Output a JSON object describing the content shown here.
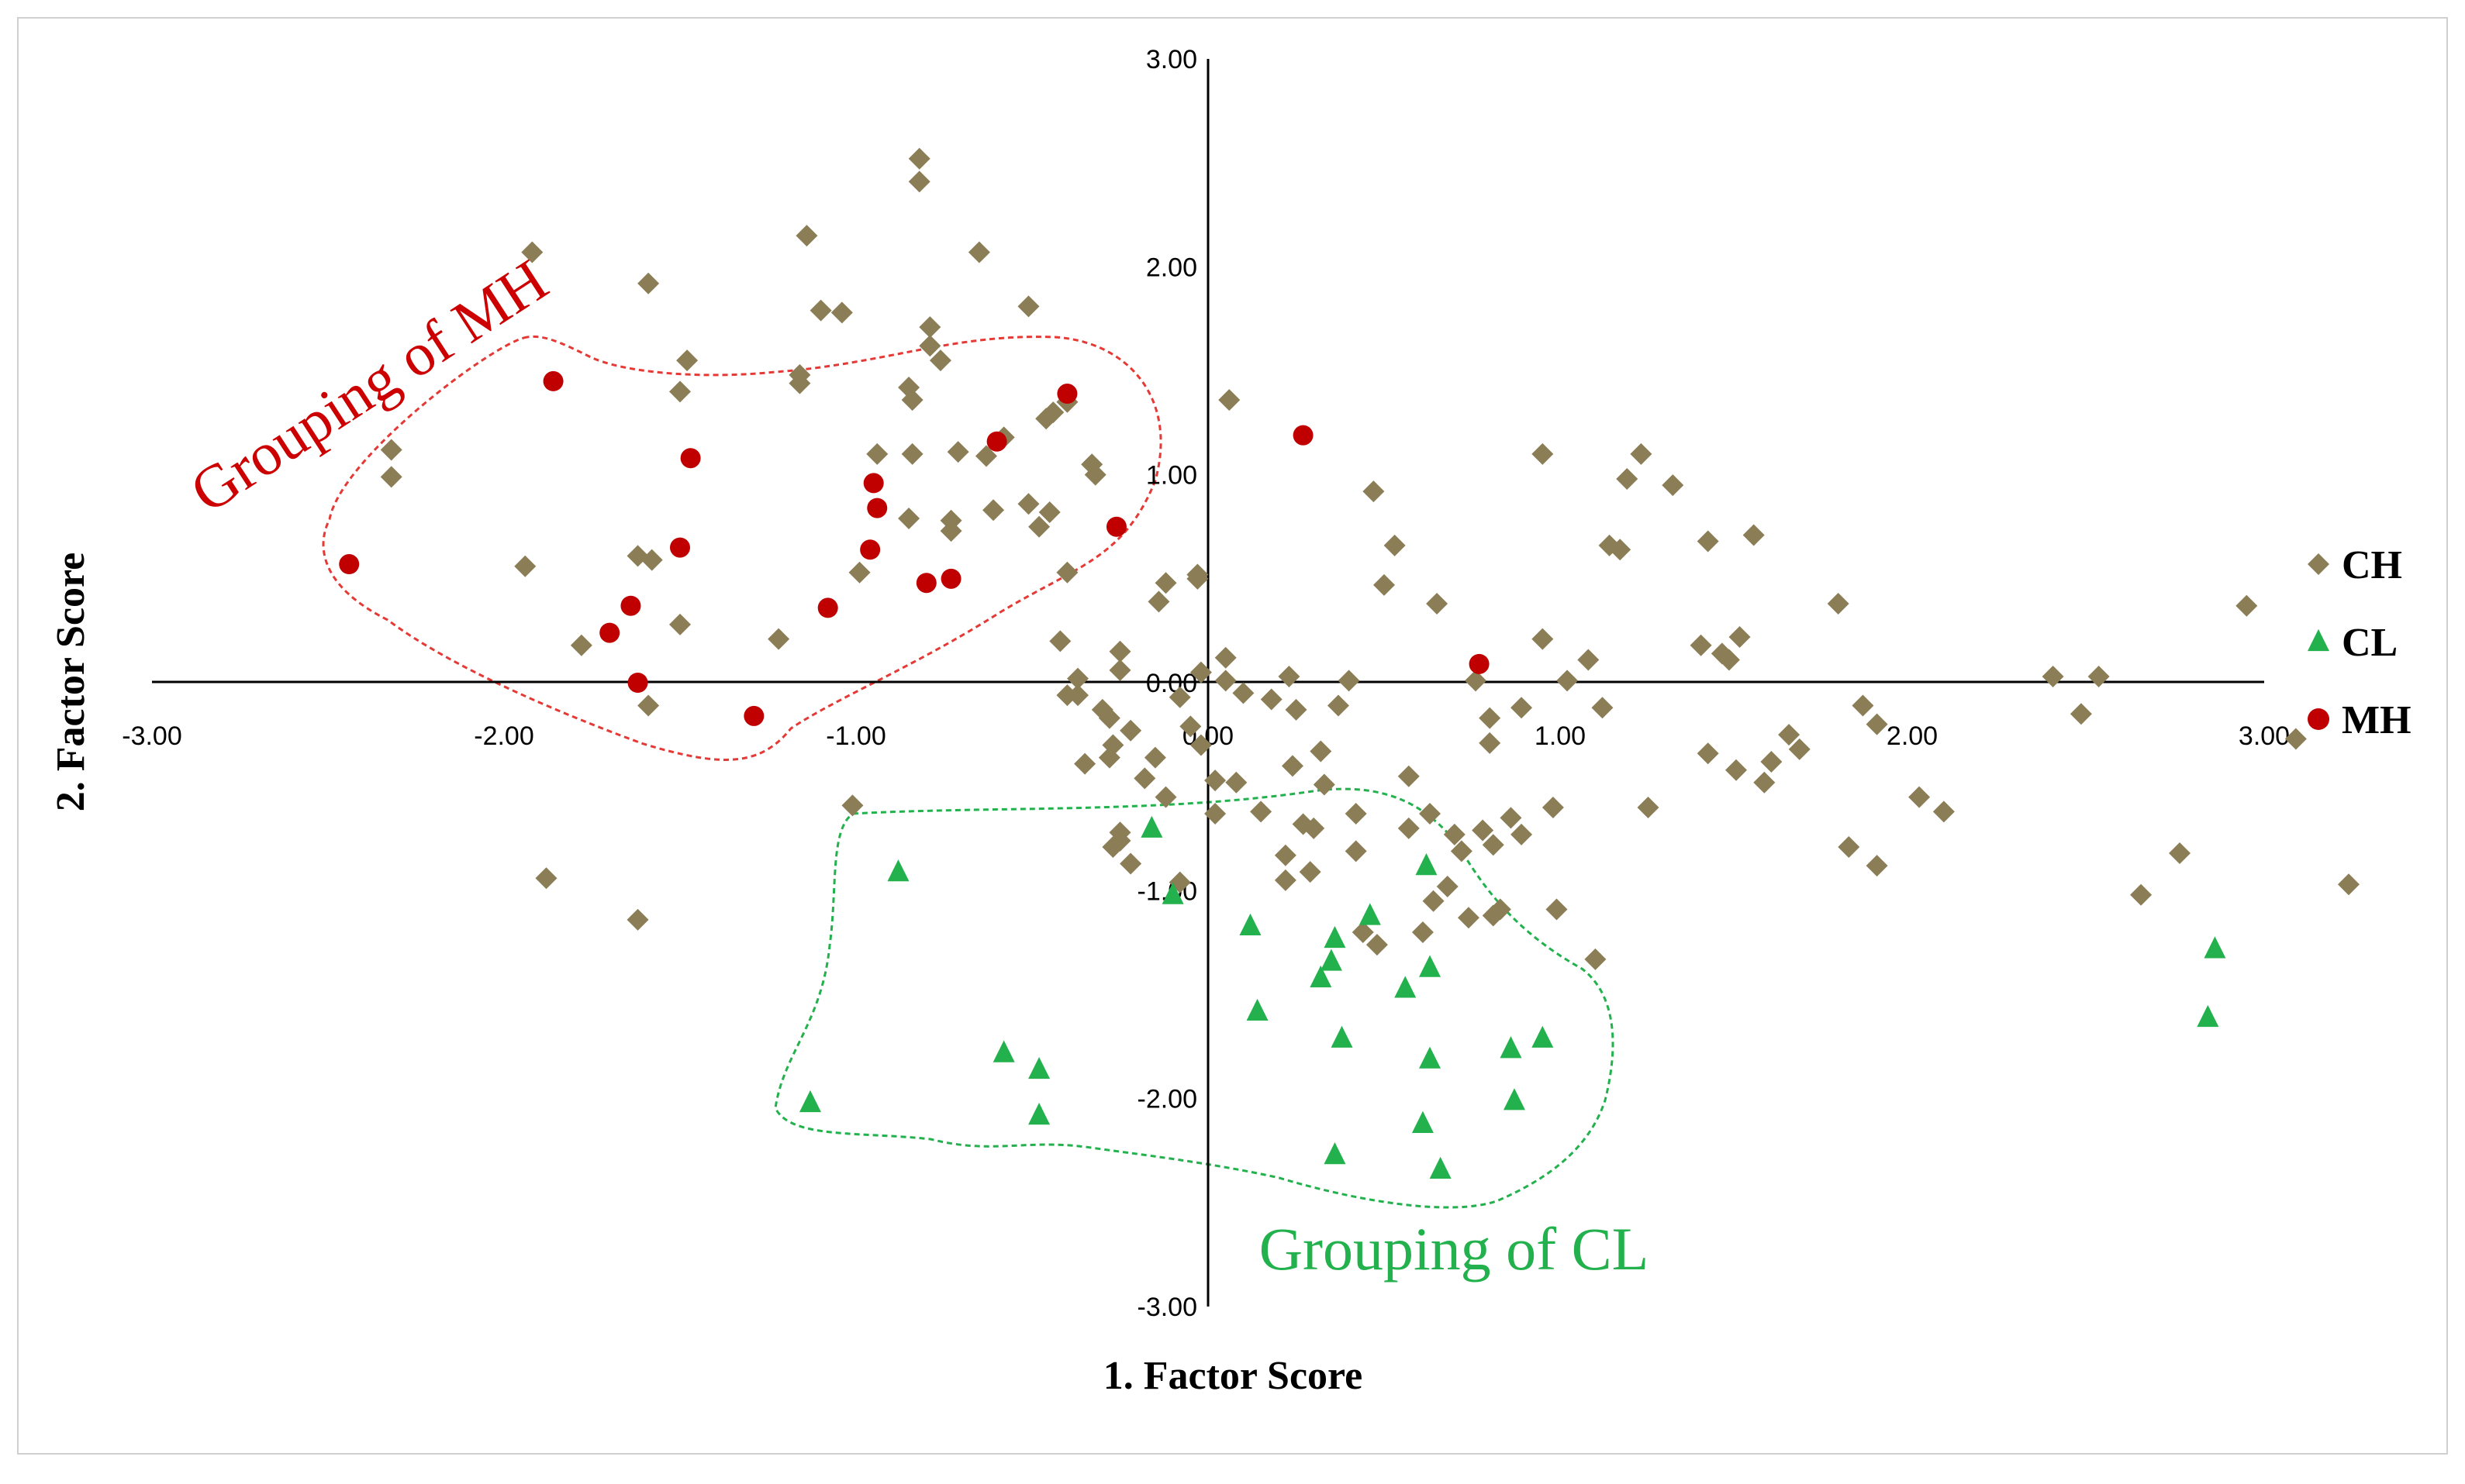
{
  "chart_data": {
    "type": "scatter",
    "xlabel": "1. Factor Score",
    "ylabel": "2. Factor Score",
    "xlim": [
      -3,
      3
    ],
    "ylim": [
      -3,
      3
    ],
    "x_ticks": [
      "-3.00",
      "-2.00",
      "-1.00",
      "0.00",
      "1.00",
      "2.00",
      "3.00"
    ],
    "y_ticks": [
      "3.00",
      "2.00",
      "1.00",
      "0.00",
      "-1.00",
      "-2.00",
      "-3.00"
    ],
    "legend_position": "right",
    "annotations": [
      {
        "text": "Grouping of MH",
        "color": "#cc0000"
      },
      {
        "text": "Grouping of CL",
        "color": "#22b14c"
      }
    ],
    "series": [
      {
        "name": "CH",
        "marker": "diamond",
        "color": "#8b7d55",
        "points": [
          [
            -2.32,
            1.12
          ],
          [
            -2.32,
            0.99
          ],
          [
            -1.92,
            2.07
          ],
          [
            -1.94,
            0.56
          ],
          [
            -1.78,
            0.18
          ],
          [
            -1.62,
            0.61
          ],
          [
            -1.59,
            1.92
          ],
          [
            -1.58,
            0.59
          ],
          [
            -1.5,
            1.4
          ],
          [
            -1.48,
            1.55
          ],
          [
            -1.5,
            0.28
          ],
          [
            -1.59,
            -0.11
          ],
          [
            -1.22,
            0.21
          ],
          [
            -1.16,
            1.44
          ],
          [
            -1.16,
            1.48
          ],
          [
            -1.14,
            2.15
          ],
          [
            -1.1,
            1.79
          ],
          [
            -1.04,
            1.78
          ],
          [
            -0.99,
            0.53
          ],
          [
            -1.01,
            -0.59
          ],
          [
            -0.85,
            0.79
          ],
          [
            -0.94,
            1.1
          ],
          [
            -0.85,
            1.42
          ],
          [
            -0.84,
            1.36
          ],
          [
            -0.82,
            2.52
          ],
          [
            -0.82,
            2.41
          ],
          [
            -0.79,
            1.71
          ],
          [
            -0.79,
            1.62
          ],
          [
            -0.84,
            1.1
          ],
          [
            -0.76,
            1.55
          ],
          [
            -0.73,
            0.78
          ],
          [
            -0.73,
            0.73
          ],
          [
            -0.71,
            1.11
          ],
          [
            -0.65,
            2.07
          ],
          [
            -0.61,
            0.83
          ],
          [
            -0.63,
            1.09
          ],
          [
            -0.58,
            1.18
          ],
          [
            -0.51,
            1.81
          ],
          [
            -0.51,
            0.86
          ],
          [
            -0.48,
            0.75
          ],
          [
            -0.45,
            0.82
          ],
          [
            -0.44,
            1.3
          ],
          [
            -0.46,
            1.27
          ],
          [
            -0.4,
            1.35
          ],
          [
            -0.4,
            0.53
          ],
          [
            -0.4,
            -0.06
          ],
          [
            -0.37,
            0.02
          ],
          [
            -0.37,
            -0.06
          ],
          [
            -0.33,
            1.05
          ],
          [
            -0.32,
            1.0
          ],
          [
            -0.35,
            -0.39
          ],
          [
            -0.42,
            0.2
          ],
          [
            -0.3,
            -0.13
          ],
          [
            -0.28,
            -0.17
          ],
          [
            -0.28,
            -0.36
          ],
          [
            -0.25,
            0.15
          ],
          [
            -0.25,
            0.06
          ],
          [
            -0.27,
            -0.3
          ],
          [
            -0.25,
            -0.72
          ],
          [
            -0.22,
            -0.23
          ],
          [
            -0.22,
            -0.87
          ],
          [
            -0.18,
            -0.46
          ],
          [
            -0.15,
            -0.36
          ],
          [
            -0.14,
            0.39
          ],
          [
            -0.12,
            0.48
          ],
          [
            -0.12,
            -0.55
          ],
          [
            -0.08,
            -0.07
          ],
          [
            -0.05,
            -0.21
          ],
          [
            -0.02,
            -0.3
          ],
          [
            0.02,
            -0.47
          ],
          [
            0.05,
            0.01
          ],
          [
            0.05,
            0.12
          ],
          [
            -0.03,
            0.5
          ],
          [
            -0.03,
            0.52
          ],
          [
            -0.08,
            -0.96
          ],
          [
            0.02,
            -0.63
          ],
          [
            0.08,
            -0.48
          ],
          [
            -0.25,
            -0.76
          ],
          [
            -0.27,
            -0.79
          ],
          [
            0.06,
            1.36
          ],
          [
            -0.02,
            0.05
          ],
          [
            0.1,
            -0.05
          ],
          [
            0.15,
            -0.62
          ],
          [
            0.18,
            -0.08
          ],
          [
            0.22,
            -0.83
          ],
          [
            0.22,
            -0.95
          ],
          [
            0.23,
            0.03
          ],
          [
            0.25,
            -0.13
          ],
          [
            0.24,
            -0.4
          ],
          [
            0.27,
            -0.68
          ],
          [
            0.29,
            -0.91
          ],
          [
            0.3,
            -0.7
          ],
          [
            0.32,
            -0.33
          ],
          [
            0.33,
            -0.49
          ],
          [
            0.37,
            -0.11
          ],
          [
            0.4,
            0.01
          ],
          [
            0.42,
            -0.63
          ],
          [
            0.42,
            -0.81
          ],
          [
            0.44,
            -1.2
          ],
          [
            0.47,
            0.92
          ],
          [
            0.48,
            -1.26
          ],
          [
            0.5,
            0.47
          ],
          [
            0.53,
            0.66
          ],
          [
            0.57,
            -0.45
          ],
          [
            0.57,
            -0.7
          ],
          [
            0.61,
            -1.2
          ],
          [
            0.63,
            -0.63
          ],
          [
            0.64,
            -1.05
          ],
          [
            0.65,
            0.38
          ],
          [
            0.68,
            -0.98
          ],
          [
            0.7,
            -0.73
          ],
          [
            0.72,
            -0.81
          ],
          [
            0.74,
            -1.13
          ],
          [
            0.76,
            0.01
          ],
          [
            0.78,
            -0.71
          ],
          [
            0.8,
            -0.17
          ],
          [
            0.8,
            -0.29
          ],
          [
            0.81,
            -0.78
          ],
          [
            0.81,
            -1.12
          ],
          [
            0.83,
            -1.09
          ],
          [
            0.86,
            -0.65
          ],
          [
            0.89,
            -0.73
          ],
          [
            0.89,
            -0.12
          ],
          [
            0.95,
            1.1
          ],
          [
            0.95,
            0.21
          ],
          [
            0.98,
            -0.6
          ],
          [
            0.99,
            -1.09
          ],
          [
            1.02,
            0.01
          ],
          [
            1.08,
            0.11
          ],
          [
            1.1,
            -1.33
          ],
          [
            1.12,
            -0.12
          ],
          [
            1.14,
            0.66
          ],
          [
            1.17,
            0.64
          ],
          [
            1.19,
            0.98
          ],
          [
            1.23,
            1.1
          ],
          [
            1.25,
            -0.6
          ],
          [
            1.32,
            0.95
          ],
          [
            1.4,
            0.18
          ],
          [
            1.42,
            0.68
          ],
          [
            1.42,
            -0.34
          ],
          [
            1.46,
            0.14
          ],
          [
            1.48,
            0.11
          ],
          [
            1.5,
            -0.42
          ],
          [
            1.51,
            0.22
          ],
          [
            1.55,
            0.71
          ],
          [
            1.58,
            -0.48
          ],
          [
            1.6,
            -0.38
          ],
          [
            1.65,
            -0.25
          ],
          [
            1.68,
            -0.32
          ],
          [
            1.79,
            0.38
          ],
          [
            1.82,
            -0.79
          ],
          [
            1.86,
            -0.11
          ],
          [
            1.9,
            -0.2
          ],
          [
            1.9,
            -0.88
          ],
          [
            2.02,
            -0.55
          ],
          [
            2.09,
            -0.62
          ],
          [
            2.4,
            0.03
          ],
          [
            2.48,
            -0.15
          ],
          [
            2.53,
            0.03
          ],
          [
            2.65,
            -1.02
          ],
          [
            2.76,
            -0.82
          ],
          [
            2.95,
            0.37
          ],
          [
            3.09,
            -0.27
          ],
          [
            3.24,
            -0.97
          ],
          [
            -1.88,
            -0.94
          ],
          [
            -1.62,
            -1.14
          ]
        ]
      },
      {
        "name": "CL",
        "marker": "triangle",
        "color": "#22b14c",
        "points": [
          [
            -0.16,
            -0.7
          ],
          [
            -0.1,
            -1.02
          ],
          [
            -0.88,
            -0.91
          ],
          [
            -1.13,
            -2.02
          ],
          [
            -0.58,
            -1.78
          ],
          [
            -0.48,
            -1.86
          ],
          [
            -0.48,
            -2.08
          ],
          [
            0.12,
            -1.17
          ],
          [
            0.14,
            -1.58
          ],
          [
            0.32,
            -1.42
          ],
          [
            0.35,
            -1.34
          ],
          [
            0.36,
            -1.23
          ],
          [
            0.38,
            -1.71
          ],
          [
            0.36,
            -2.27
          ],
          [
            0.46,
            -1.12
          ],
          [
            0.56,
            -1.47
          ],
          [
            0.61,
            -2.12
          ],
          [
            0.62,
            -0.88
          ],
          [
            0.63,
            -1.37
          ],
          [
            0.63,
            -1.81
          ],
          [
            0.66,
            -2.34
          ],
          [
            0.86,
            -1.76
          ],
          [
            0.87,
            -2.01
          ],
          [
            0.95,
            -1.71
          ],
          [
            2.86,
            -1.28
          ],
          [
            2.84,
            -1.61
          ]
        ]
      },
      {
        "name": "MH",
        "marker": "circle",
        "color": "#c00000",
        "points": [
          [
            -2.44,
            0.57
          ],
          [
            -1.86,
            1.45
          ],
          [
            -1.62,
            0.0
          ],
          [
            -1.64,
            0.37
          ],
          [
            -1.7,
            0.24
          ],
          [
            -1.5,
            0.65
          ],
          [
            -1.47,
            1.08
          ],
          [
            -1.29,
            -0.16
          ],
          [
            -1.08,
            0.36
          ],
          [
            -0.96,
            0.64
          ],
          [
            -0.95,
            0.96
          ],
          [
            -0.94,
            0.84
          ],
          [
            -0.8,
            0.48
          ],
          [
            -0.73,
            0.5
          ],
          [
            -0.6,
            1.16
          ],
          [
            -0.4,
            1.39
          ],
          [
            -0.26,
            0.75
          ],
          [
            0.27,
            1.19
          ],
          [
            0.77,
            0.09
          ]
        ]
      }
    ]
  },
  "legend": [
    {
      "label": "CH",
      "marker": "diamond",
      "color": "#8b7d55"
    },
    {
      "label": "CL",
      "marker": "triangle",
      "color": "#22b14c"
    },
    {
      "label": "MH",
      "marker": "circle",
      "color": "#c00000"
    }
  ]
}
